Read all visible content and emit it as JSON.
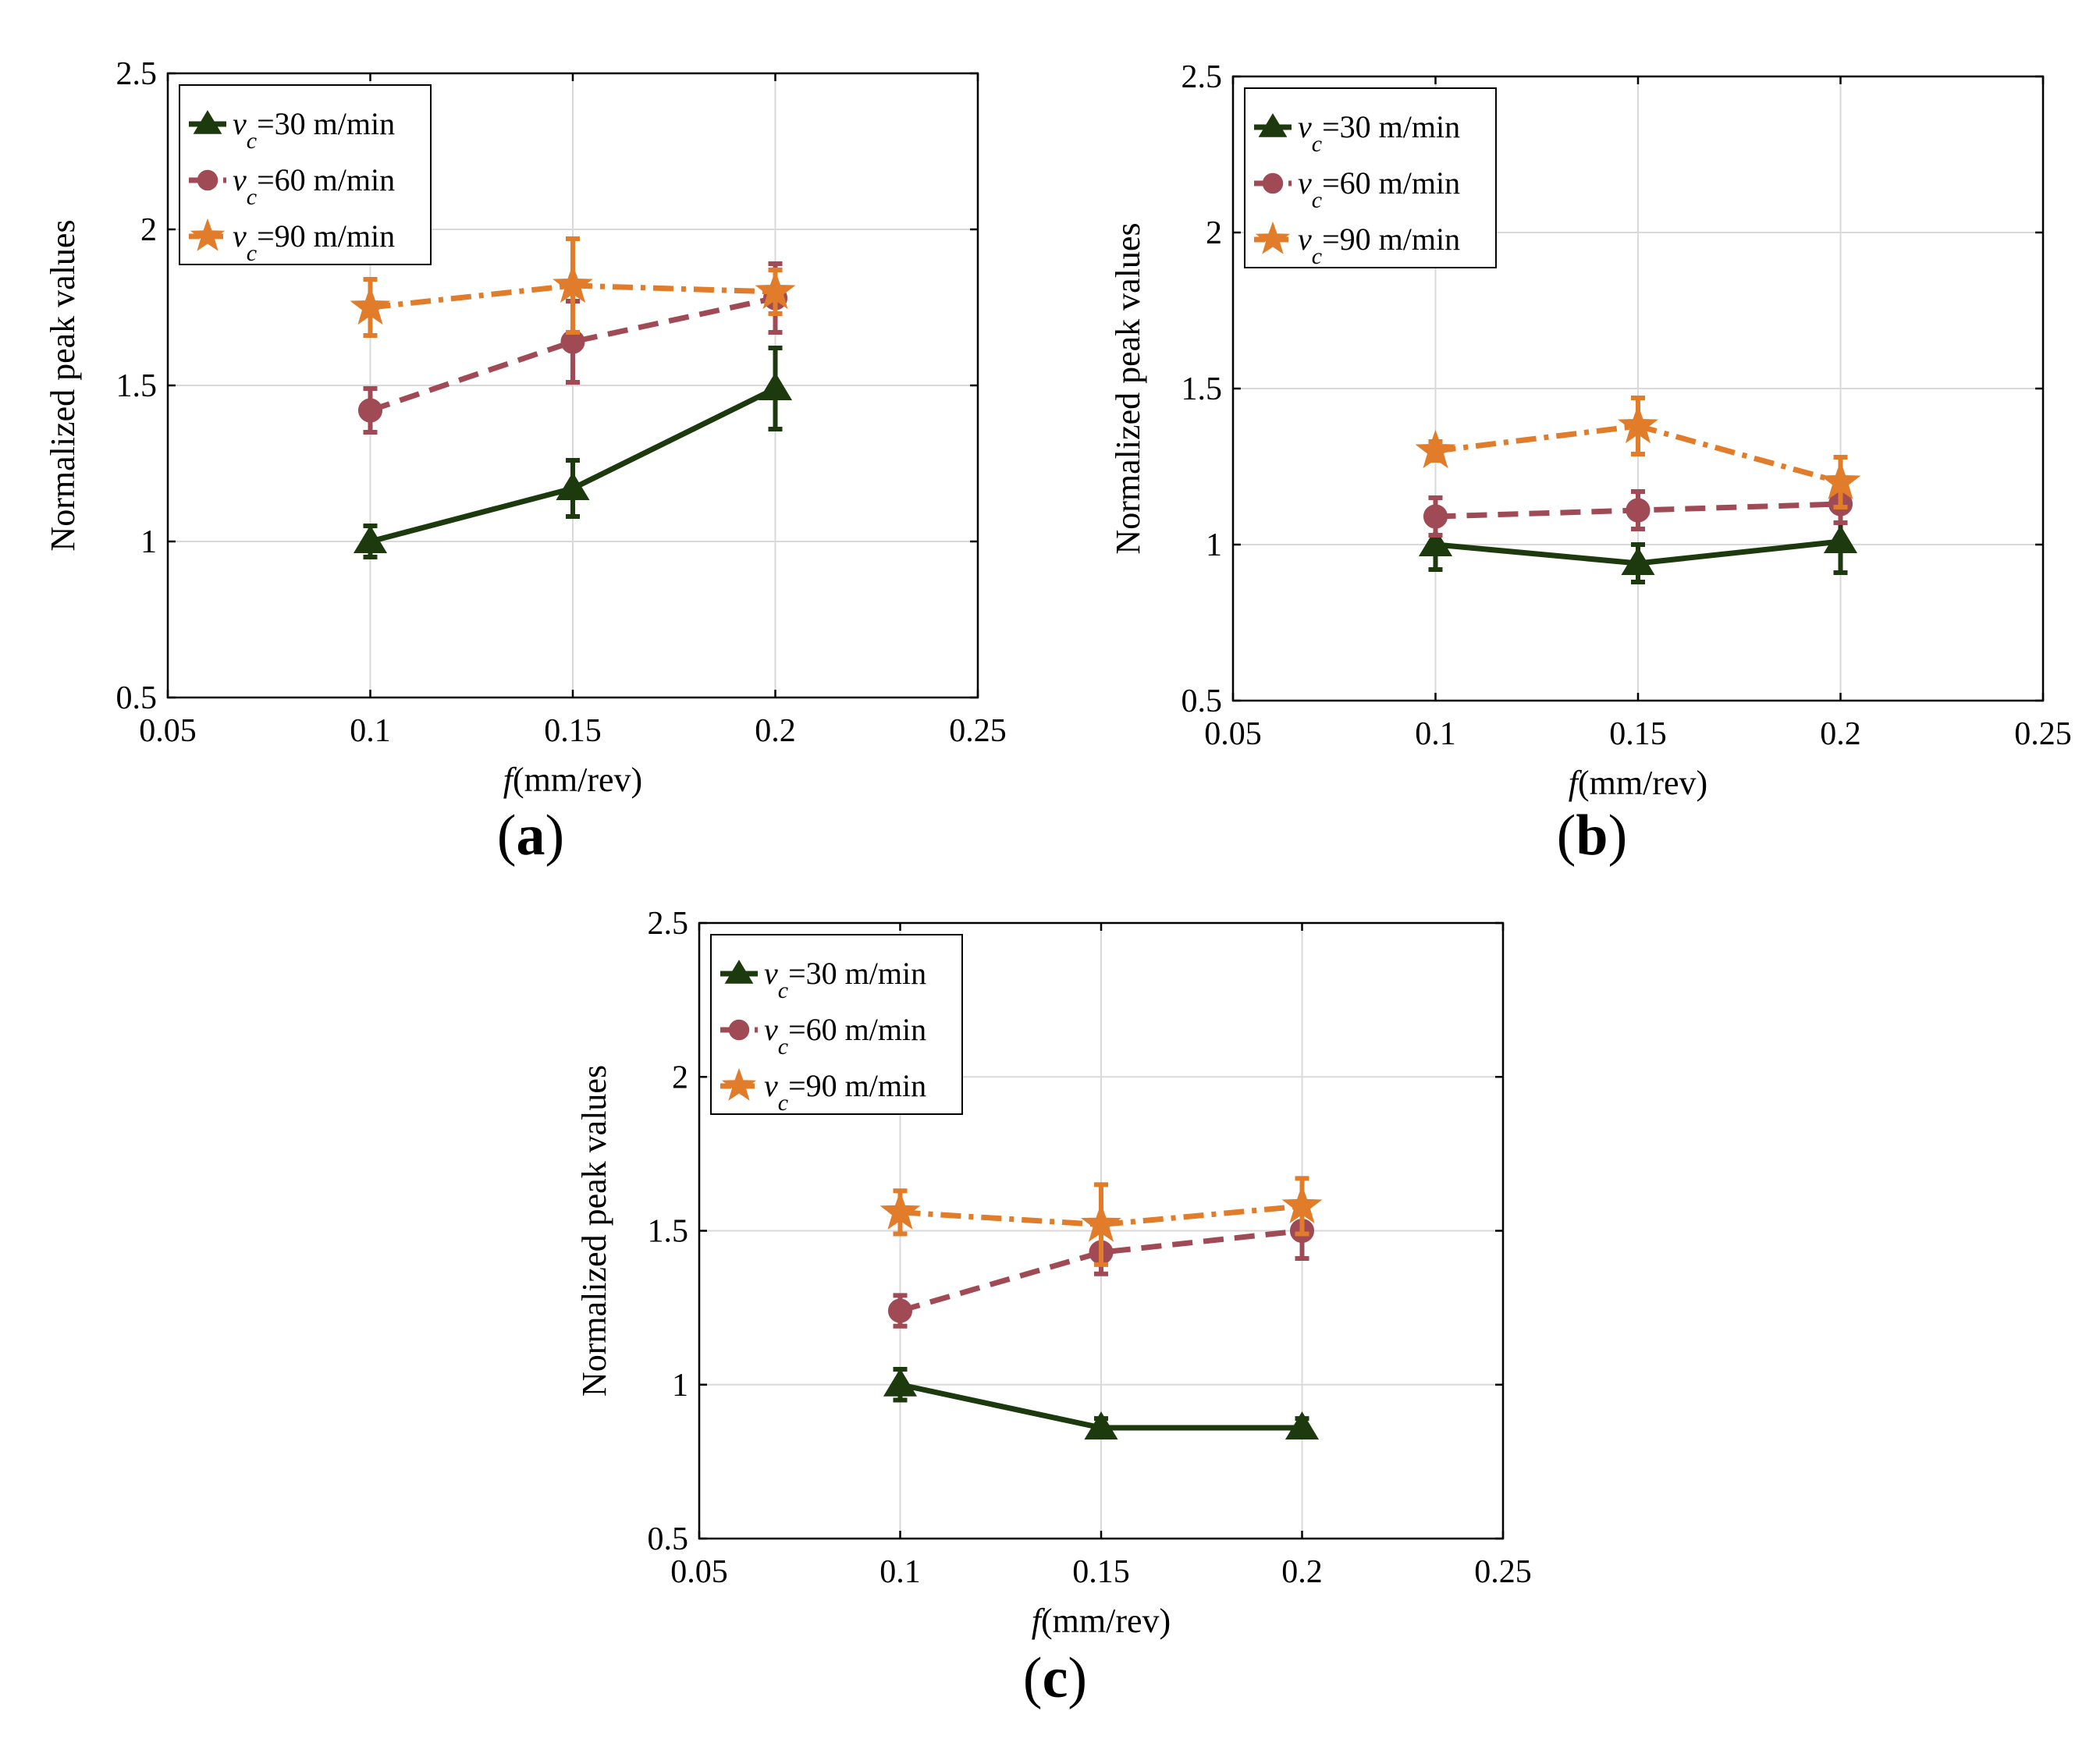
{
  "figure": {
    "colors": {
      "s30": "#1c3a0e",
      "s60": "#a04a55",
      "s90": "#e07c2a",
      "grid": "#d9d9d9",
      "axis": "#000000"
    }
  },
  "chart_data": [
    {
      "type": "line",
      "panel_label": "a",
      "xlabel_italic": "f",
      "xlabel_rest": "(mm/rev)",
      "ylabel": "Normalized peak values",
      "xlim": [
        0.05,
        0.25
      ],
      "ylim": [
        0.5,
        2.5
      ],
      "xticks": [
        "0.05",
        "0.1",
        "0.15",
        "0.2",
        "0.25"
      ],
      "yticks": [
        "0.5",
        "1",
        "1.5",
        "2",
        "2.5"
      ],
      "grid": true,
      "legend_position": "top-left",
      "x": [
        0.1,
        0.15,
        0.2
      ],
      "series": [
        {
          "key": "s30",
          "name_var": "v",
          "name_sub": "c",
          "name_rest": "=30 m/min",
          "marker": "triangle",
          "line": "solid",
          "values": [
            1.0,
            1.17,
            1.49
          ],
          "errors": [
            0.05,
            0.09,
            0.13
          ]
        },
        {
          "key": "s60",
          "name_var": "v",
          "name_sub": "c",
          "name_rest": "=60 m/min",
          "marker": "circle",
          "line": "dashed",
          "values": [
            1.42,
            1.64,
            1.78
          ],
          "errors": [
            0.07,
            0.13,
            0.11
          ]
        },
        {
          "key": "s90",
          "name_var": "v",
          "name_sub": "c",
          "name_rest": "=90 m/min",
          "marker": "star",
          "line": "dashdot",
          "values": [
            1.75,
            1.82,
            1.8
          ],
          "errors": [
            0.09,
            0.15,
            0.07
          ]
        }
      ]
    },
    {
      "type": "line",
      "panel_label": "b",
      "xlabel_italic": "f",
      "xlabel_rest": "(mm/rev)",
      "ylabel": "Normalized peak values",
      "xlim": [
        0.05,
        0.25
      ],
      "ylim": [
        0.5,
        2.5
      ],
      "xticks": [
        "0.05",
        "0.1",
        "0.15",
        "0.2",
        "0.25"
      ],
      "yticks": [
        "0.5",
        "1",
        "1.5",
        "2",
        "2.5"
      ],
      "grid": true,
      "legend_position": "top-left",
      "x": [
        0.1,
        0.15,
        0.2
      ],
      "series": [
        {
          "key": "s30",
          "name_var": "v",
          "name_sub": "c",
          "name_rest": "=30 m/min",
          "marker": "triangle",
          "line": "solid",
          "values": [
            1.0,
            0.94,
            1.01
          ],
          "errors": [
            0.08,
            0.06,
            0.1
          ]
        },
        {
          "key": "s60",
          "name_var": "v",
          "name_sub": "c",
          "name_rest": "=60 m/min",
          "marker": "circle",
          "line": "dashed",
          "values": [
            1.09,
            1.11,
            1.13
          ],
          "errors": [
            0.06,
            0.06,
            0.06
          ]
        },
        {
          "key": "s90",
          "name_var": "v",
          "name_sub": "c",
          "name_rest": "=90 m/min",
          "marker": "star",
          "line": "dashdot",
          "values": [
            1.3,
            1.38,
            1.2
          ],
          "errors": [
            0.03,
            0.09,
            0.08
          ]
        }
      ]
    },
    {
      "type": "line",
      "panel_label": "c",
      "xlabel_italic": "f",
      "xlabel_rest": "(mm/rev)",
      "ylabel": "Normalized peak values",
      "xlim": [
        0.05,
        0.25
      ],
      "ylim": [
        0.5,
        2.5
      ],
      "xticks": [
        "0.05",
        "0.1",
        "0.15",
        "0.2",
        "0.25"
      ],
      "yticks": [
        "0.5",
        "1",
        "1.5",
        "2",
        "2.5"
      ],
      "grid": true,
      "legend_position": "top-left",
      "x": [
        0.1,
        0.15,
        0.2
      ],
      "series": [
        {
          "key": "s30",
          "name_var": "v",
          "name_sub": "c",
          "name_rest": "=30 m/min",
          "marker": "triangle",
          "line": "solid",
          "values": [
            1.0,
            0.86,
            0.86
          ],
          "errors": [
            0.05,
            0.03,
            0.03
          ]
        },
        {
          "key": "s60",
          "name_var": "v",
          "name_sub": "c",
          "name_rest": "=60 m/min",
          "marker": "circle",
          "line": "dashed",
          "values": [
            1.24,
            1.43,
            1.5
          ],
          "errors": [
            0.05,
            0.07,
            0.09
          ]
        },
        {
          "key": "s90",
          "name_var": "v",
          "name_sub": "c",
          "name_rest": "=90 m/min",
          "marker": "star",
          "line": "dashdot",
          "values": [
            1.56,
            1.52,
            1.58
          ],
          "errors": [
            0.07,
            0.13,
            0.09
          ]
        }
      ]
    }
  ]
}
